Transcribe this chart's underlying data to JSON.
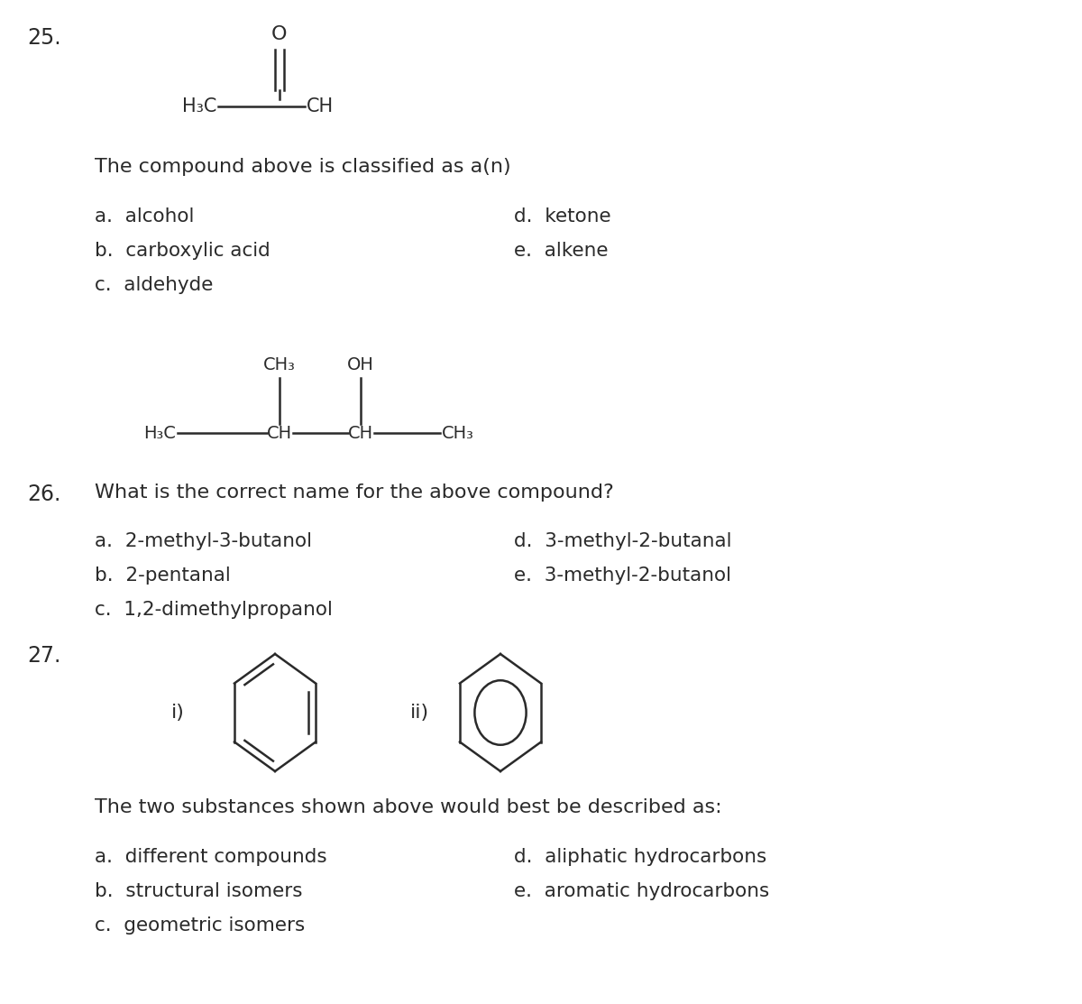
{
  "bg_color": "#ffffff",
  "text_color": "#2a2a2a",
  "font_family": "DejaVu Sans",
  "q25_number": "25.",
  "q25_question": "The compound above is classified as a(n)",
  "q25_options_left": [
    "a.  alcohol",
    "b.  carboxylic acid",
    "c.  aldehyde"
  ],
  "q25_options_right": [
    "d.  ketone",
    "e.  alkene"
  ],
  "q26_number": "26.",
  "q26_question": "What is the correct name for the above compound?",
  "q26_options_left": [
    "a.  2-methyl-3-butanol",
    "b.  2-pentanal",
    "c.  1,2-dimethylpropanol"
  ],
  "q26_options_right": [
    "d.  3-methyl-2-butanal",
    "e.  3-methyl-2-butanol"
  ],
  "q27_number": "27.",
  "q27_question": "The two substances shown above would best be described as:",
  "q27_options_left": [
    "a.  different compounds",
    "b.  structural isomers",
    "c.  geometric isomers"
  ],
  "q27_options_right": [
    "d.  aliphatic hydrocarbons",
    "e.  aromatic hydrocarbons"
  ],
  "font_size_number": 17,
  "font_size_text": 16,
  "font_size_options": 15.5,
  "font_size_chem": 14
}
